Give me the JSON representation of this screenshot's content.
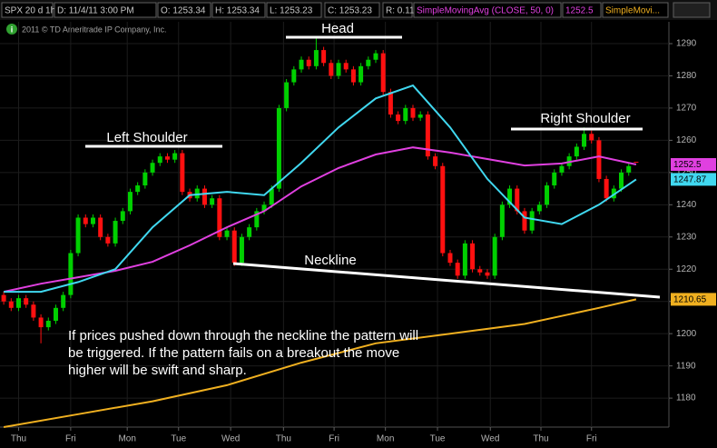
{
  "header": [
    "SPX 20 d 1h",
    "D: 11/4/11 3:00 PM",
    "O: 1253.34",
    "H: 1253.34",
    "L: 1253.23",
    "C: 1253.23",
    "R: 0.11",
    "SimpleMovingAvg (CLOSE, 50, 0)",
    "1252.5",
    "SimpleMovi..."
  ],
  "copyright": "2011 © TD Ameritrade IP Company, Inc.",
  "annotations": [
    "Head",
    "Left Shoulder",
    "Right Shoulder",
    "Neckline"
  ],
  "note": [
    "If prices pushed down through the neckline the pattern will",
    "be triggered. If the pattern fails on a breakout the move",
    "higher will be swift and sharp."
  ],
  "chart_data": {
    "type": "candlestick",
    "up_color": "#00d000",
    "down_color": "#ff1010",
    "open": [
      1212,
      1210,
      1208,
      1211,
      1209,
      1205,
      1202,
      1204,
      1208,
      1212,
      1225,
      1236,
      1234,
      1236,
      1230,
      1228,
      1235,
      1238,
      1244,
      1246,
      1250,
      1253,
      1255,
      1254,
      1256,
      1244,
      1242,
      1245,
      1240,
      1242,
      1230,
      1232,
      1222,
      1230,
      1233,
      1238,
      1240,
      1245,
      1270,
      1278,
      1282,
      1285,
      1283,
      1288,
      1284,
      1280,
      1284,
      1282,
      1278,
      1283,
      1285,
      1287,
      1275,
      1268,
      1266,
      1270,
      1267,
      1268,
      1255,
      1252,
      1225,
      1222,
      1218,
      1228,
      1220,
      1219,
      1218,
      1230,
      1240,
      1245,
      1238,
      1232,
      1238,
      1240,
      1246,
      1250,
      1252,
      1255,
      1258,
      1262,
      1260,
      1248,
      1242,
      1245,
      1250,
      1253.34
    ],
    "high": [
      1213,
      1211,
      1212,
      1212,
      1210,
      1206,
      1205,
      1209,
      1213,
      1226,
      1237,
      1237,
      1237,
      1237,
      1231,
      1236,
      1239,
      1245,
      1247,
      1251,
      1254,
      1256,
      1256,
      1257,
      1257,
      1245,
      1246,
      1246,
      1243,
      1243,
      1233,
      1233,
      1231,
      1234,
      1239,
      1241,
      1246,
      1271,
      1279,
      1283,
      1286,
      1286,
      1292,
      1289,
      1285,
      1285,
      1285,
      1283,
      1284,
      1286,
      1288,
      1288,
      1276,
      1269,
      1271,
      1271,
      1269,
      1269,
      1256,
      1253,
      1226,
      1223,
      1229,
      1229,
      1221,
      1220,
      1231,
      1241,
      1246,
      1246,
      1239,
      1239,
      1241,
      1247,
      1251,
      1253,
      1256,
      1259,
      1264,
      1263,
      1261,
      1249,
      1246,
      1251,
      1253,
      1253.34
    ],
    "low": [
      1209,
      1207,
      1207,
      1208,
      1204,
      1197,
      1201,
      1203,
      1207,
      1211,
      1224,
      1233,
      1233,
      1229,
      1227,
      1227,
      1234,
      1237,
      1243,
      1245,
      1249,
      1252,
      1253,
      1253,
      1243,
      1241,
      1241,
      1239,
      1239,
      1229,
      1229,
      1221,
      1221,
      1229,
      1232,
      1237,
      1239,
      1244,
      1269,
      1277,
      1281,
      1282,
      1282,
      1283,
      1279,
      1279,
      1281,
      1277,
      1277,
      1282,
      1284,
      1274,
      1267,
      1265,
      1265,
      1266,
      1266,
      1254,
      1251,
      1224,
      1221,
      1217,
      1217,
      1219,
      1218,
      1217,
      1217,
      1229,
      1239,
      1237,
      1231,
      1231,
      1237,
      1239,
      1245,
      1249,
      1251,
      1254,
      1257,
      1259,
      1247,
      1241,
      1241,
      1244,
      1249,
      1253.23
    ],
    "close": [
      1210,
      1208,
      1211,
      1209,
      1205,
      1202,
      1204,
      1208,
      1212,
      1225,
      1236,
      1234,
      1236,
      1230,
      1228,
      1235,
      1238,
      1244,
      1246,
      1250,
      1253,
      1255,
      1254,
      1256,
      1244,
      1242,
      1245,
      1240,
      1242,
      1230,
      1232,
      1222,
      1230,
      1233,
      1238,
      1240,
      1245,
      1270,
      1278,
      1282,
      1285,
      1283,
      1288,
      1284,
      1280,
      1284,
      1282,
      1278,
      1283,
      1285,
      1287,
      1275,
      1268,
      1266,
      1270,
      1267,
      1268,
      1255,
      1252,
      1225,
      1222,
      1218,
      1228,
      1220,
      1219,
      1218,
      1230,
      1240,
      1245,
      1238,
      1232,
      1238,
      1240,
      1246,
      1250,
      1252,
      1255,
      1258,
      1262,
      1260,
      1248,
      1242,
      1245,
      1250,
      1252,
      1253.23
    ],
    "lines": [
      {
        "color": "#e040e0",
        "x": [
          0,
          5,
          10,
          15,
          20,
          25,
          30,
          35,
          40,
          45,
          50,
          55,
          60,
          65,
          70,
          75,
          80,
          85
        ],
        "values": [
          1213,
          1215.5,
          1217.5,
          1219.5,
          1222.3,
          1227.4,
          1233,
          1238,
          1245.7,
          1251.4,
          1255.6,
          1257.8,
          1256.2,
          1254.2,
          1252.2,
          1252.8,
          1255,
          1252.5
        ],
        "tag": 1252.5
      },
      {
        "color": "#40d8f0",
        "x": [
          0,
          5,
          10,
          15,
          20,
          25,
          30,
          35,
          40,
          45,
          50,
          55,
          60,
          65,
          70,
          75,
          80,
          85
        ],
        "values": [
          1213,
          1213,
          1216,
          1220,
          1233,
          1243,
          1244,
          1243,
          1253,
          1264,
          1273,
          1277,
          1264,
          1248,
          1236,
          1234,
          1240,
          1247.87
        ],
        "tag": 1247.87
      },
      {
        "color": "#f0b020",
        "x": [
          0,
          10,
          20,
          30,
          40,
          50,
          60,
          65,
          70,
          75,
          80,
          85
        ],
        "values": [
          1171,
          1175,
          1179,
          1184,
          1191,
          1197,
          1200,
          1201.5,
          1203,
          1205.5,
          1208,
          1210.65
        ],
        "tag": 1210.65
      }
    ],
    "xlim": [
      -0.5,
      89.4
    ],
    "ylim": [
      1168,
      1298.5
    ],
    "yticks": [
      1180,
      1190,
      1200,
      1210,
      1220,
      1230,
      1240,
      1250,
      1260,
      1270,
      1280,
      1290
    ],
    "xticks": [
      {
        "value": 2,
        "label": "Thu"
      },
      {
        "value": 9,
        "label": "Fri"
      },
      {
        "value": 16.6,
        "label": "Mon"
      },
      {
        "value": 23.5,
        "label": "Tue"
      },
      {
        "value": 30.5,
        "label": "Wed"
      },
      {
        "value": 37.6,
        "label": "Thu"
      },
      {
        "value": 44.4,
        "label": "Fri"
      },
      {
        "value": 51.3,
        "label": "Mon"
      },
      {
        "value": 58.3,
        "label": "Tue"
      },
      {
        "value": 65.4,
        "label": "Wed"
      },
      {
        "value": 72.2,
        "label": "Thu"
      },
      {
        "value": 79,
        "label": "Fri"
      }
    ],
    "grid": true
  }
}
